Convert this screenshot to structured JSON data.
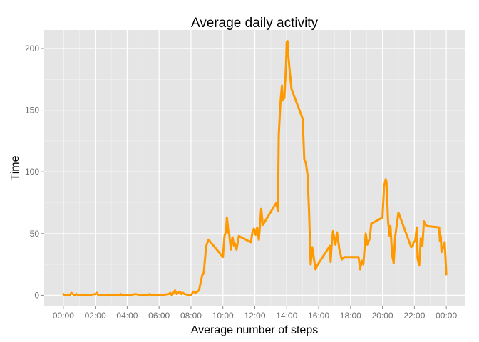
{
  "chart_data": {
    "type": "line",
    "title": "Average daily activity",
    "xlabel": "Average number of steps",
    "ylabel": "Time",
    "x_ticks": [
      "00:00",
      "02:00",
      "04:00",
      "06:00",
      "08:00",
      "10:00",
      "12:00",
      "14:00",
      "16:00",
      "18:00",
      "20:00",
      "22:00",
      "00:00"
    ],
    "xlim_hours": [
      -1.2,
      25.2
    ],
    "ylim": [
      -9,
      215
    ],
    "y_ticks": [
      0,
      50,
      100,
      150,
      200
    ],
    "grid": true,
    "legend": "none",
    "colors": {
      "line": "#ff9900",
      "panel": "#e5e5e5",
      "grid_major": "#ffffff",
      "grid_minor": "#f2f2f2",
      "tick_text": "#6e6e6e"
    },
    "series": [
      {
        "x_hours": [
          0.0,
          0.1,
          0.2,
          0.3,
          0.4,
          0.5,
          0.6,
          0.7,
          0.8,
          1.0,
          1.5,
          2.0,
          2.1,
          2.2,
          2.5,
          3.0,
          3.5,
          3.6,
          3.7,
          4.0,
          4.1,
          4.5,
          5.0,
          5.3,
          5.4,
          5.6,
          6.0,
          6.6,
          6.7,
          6.8,
          7.0,
          7.1,
          7.2,
          7.3,
          7.4,
          7.5,
          7.6,
          8.0,
          8.15,
          8.3,
          8.5,
          8.7,
          8.8,
          8.95,
          9.1,
          10.0,
          10.1,
          10.2,
          10.25,
          10.35,
          10.4,
          10.5,
          10.6,
          10.7,
          10.75,
          10.85,
          11.0,
          11.75,
          11.85,
          11.95,
          12.05,
          12.15,
          12.25,
          12.3,
          12.4,
          12.5,
          13.35,
          13.45,
          13.5,
          13.6,
          13.7,
          13.75,
          13.85,
          13.95,
          14.0,
          14.05,
          14.1,
          14.2,
          14.3,
          15.0,
          15.1,
          15.2,
          15.3,
          15.4,
          15.5,
          15.6,
          15.7,
          15.8,
          15.95,
          16.7,
          16.75,
          16.8,
          16.9,
          17.05,
          17.15,
          17.3,
          17.45,
          17.6,
          18.5,
          18.6,
          18.7,
          18.8,
          18.95,
          19.05,
          19.2,
          19.3,
          20.0,
          20.1,
          20.2,
          20.25,
          20.35,
          20.45,
          20.5,
          20.6,
          20.7,
          20.8,
          21.0,
          21.8,
          21.9,
          21.95,
          22.05,
          22.15,
          22.2,
          22.3,
          22.4,
          22.5,
          22.6,
          22.65,
          22.8,
          23.55,
          23.6,
          23.65,
          23.7,
          23.8,
          23.9,
          24.0
        ],
        "values": [
          1,
          0,
          0,
          0,
          0,
          2,
          1,
          0,
          1,
          0,
          0,
          1,
          2,
          0,
          0,
          0,
          0,
          1,
          0,
          0,
          0,
          1,
          0,
          0,
          1,
          0,
          0,
          1,
          2,
          0,
          4,
          1,
          2,
          3,
          1,
          2,
          1,
          0,
          3,
          2,
          4,
          16,
          18,
          40,
          45,
          31,
          48,
          52,
          63,
          51,
          49,
          37,
          47,
          40,
          42,
          37,
          48,
          43,
          51,
          54,
          49,
          55,
          45,
          53,
          70,
          57,
          75,
          68,
          130,
          155,
          170,
          158,
          160,
          185,
          205,
          206,
          194,
          180,
          167,
          143,
          110,
          107,
          98,
          68,
          25,
          39,
          30,
          21,
          25,
          40,
          27,
          38,
          52,
          41,
          51,
          37,
          29,
          31,
          31,
          21,
          28,
          25,
          50,
          41,
          46,
          58,
          63,
          88,
          94,
          92,
          60,
          48,
          56,
          33,
          26,
          48,
          67,
          39,
          40,
          43,
          44,
          55,
          30,
          24,
          46,
          40,
          60,
          58,
          56,
          55,
          44,
          48,
          35,
          39,
          43,
          17
        ]
      }
    ]
  }
}
